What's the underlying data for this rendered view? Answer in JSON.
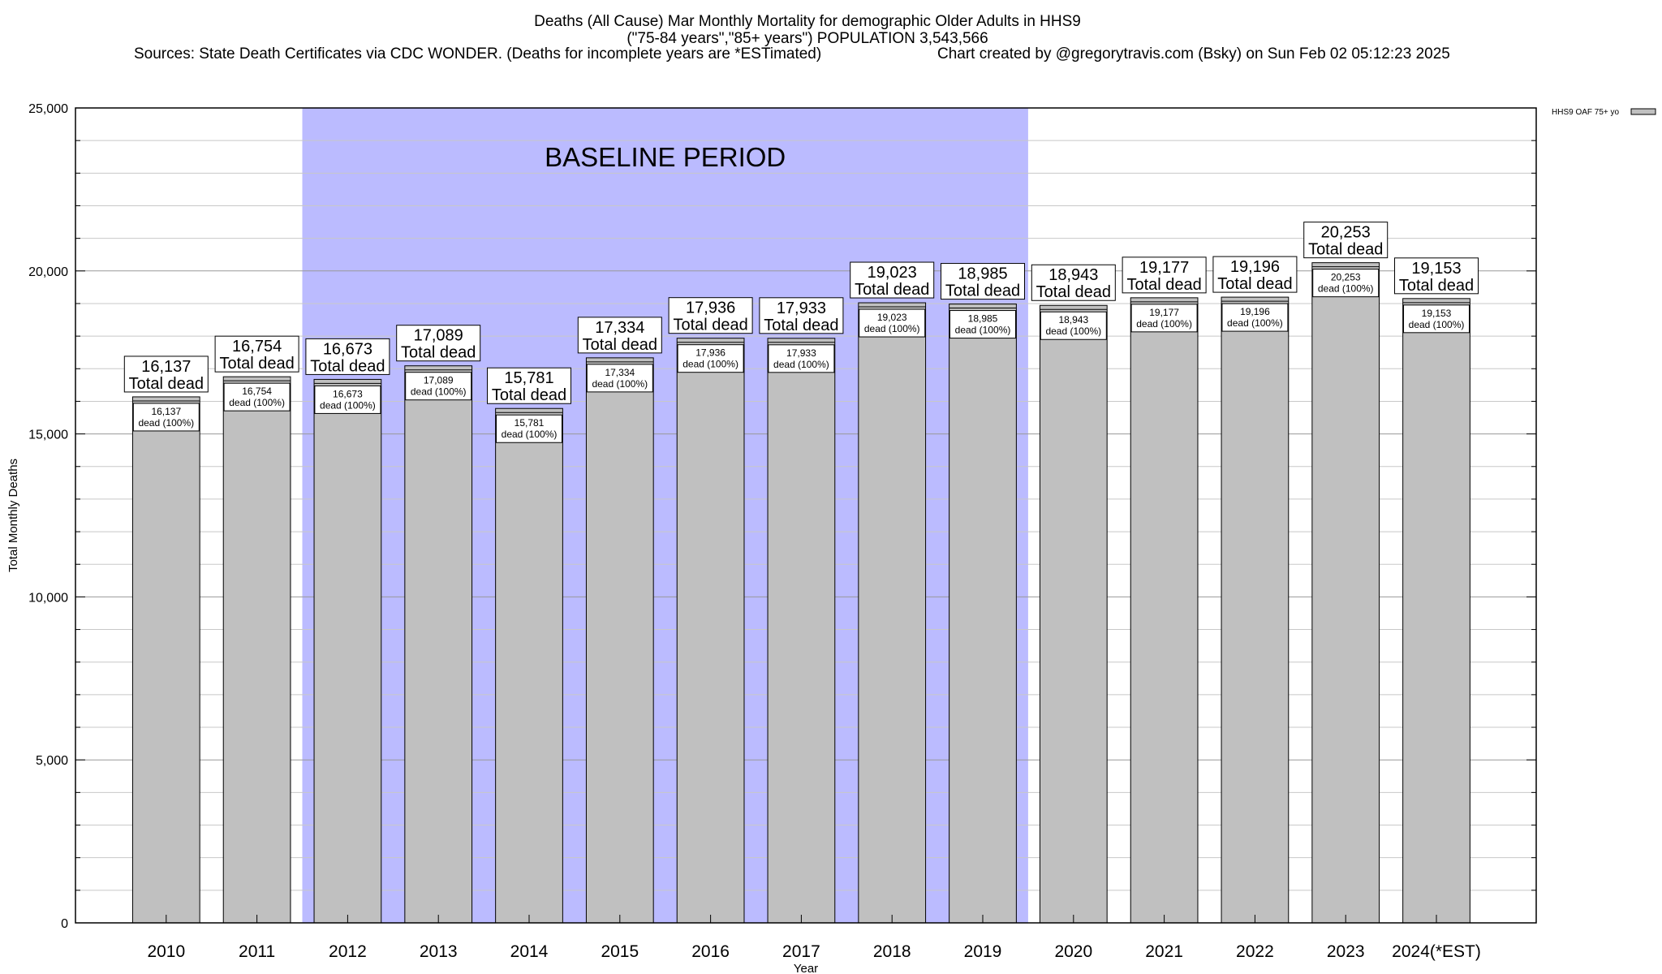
{
  "chart_data": {
    "type": "bar",
    "title_lines": [
      "Deaths (All Cause) Mar Monthly Mortality for demographic Older Adults in HHS9",
      "(\"75-84 years\",\"85+ years\") POPULATION 3,543,566"
    ],
    "sources": "Sources: State Death Certificates via CDC WONDER. (Deaths for incomplete years are *ESTimated)",
    "credit": "Chart created by @gregorytravis.com (Bsky) on Sun Feb 02 05:12:23 2025",
    "xlabel": "Year",
    "ylabel": "Total Monthly Deaths",
    "ylim": [
      0,
      25000
    ],
    "yticks": [
      0,
      5000,
      10000,
      15000,
      20000,
      25000
    ],
    "ytick_labels": [
      "0",
      "5,000",
      "10,000",
      "15,000",
      "20,000",
      "25,000"
    ],
    "minor_tick_step": 1000,
    "categories": [
      "2010",
      "2011",
      "2012",
      "2013",
      "2014",
      "2015",
      "2016",
      "2017",
      "2018",
      "2019",
      "2020",
      "2021",
      "2022",
      "2023",
      "2024(*EST)"
    ],
    "values": [
      16137,
      16754,
      16673,
      17089,
      15781,
      17334,
      17936,
      17933,
      19023,
      18985,
      18943,
      19177,
      19196,
      20253,
      19153
    ],
    "value_labels": [
      "16,137",
      "16,754",
      "16,673",
      "17,089",
      "15,781",
      "17,334",
      "17,936",
      "17,933",
      "19,023",
      "18,985",
      "18,943",
      "19,177",
      "19,196",
      "20,253",
      "19,153"
    ],
    "outer_label_suffix": "Total dead",
    "inner_label_suffix": "dead (100%)",
    "series_name": "HHS9 OAF 75+ yo",
    "baseline": {
      "label": "BASELINE PERIOD",
      "start_category": "2012",
      "end_category": "2019",
      "color": "#bbbbff"
    },
    "bar_color": "#c0c0c0",
    "legend_position": "top-right",
    "grid": true
  }
}
